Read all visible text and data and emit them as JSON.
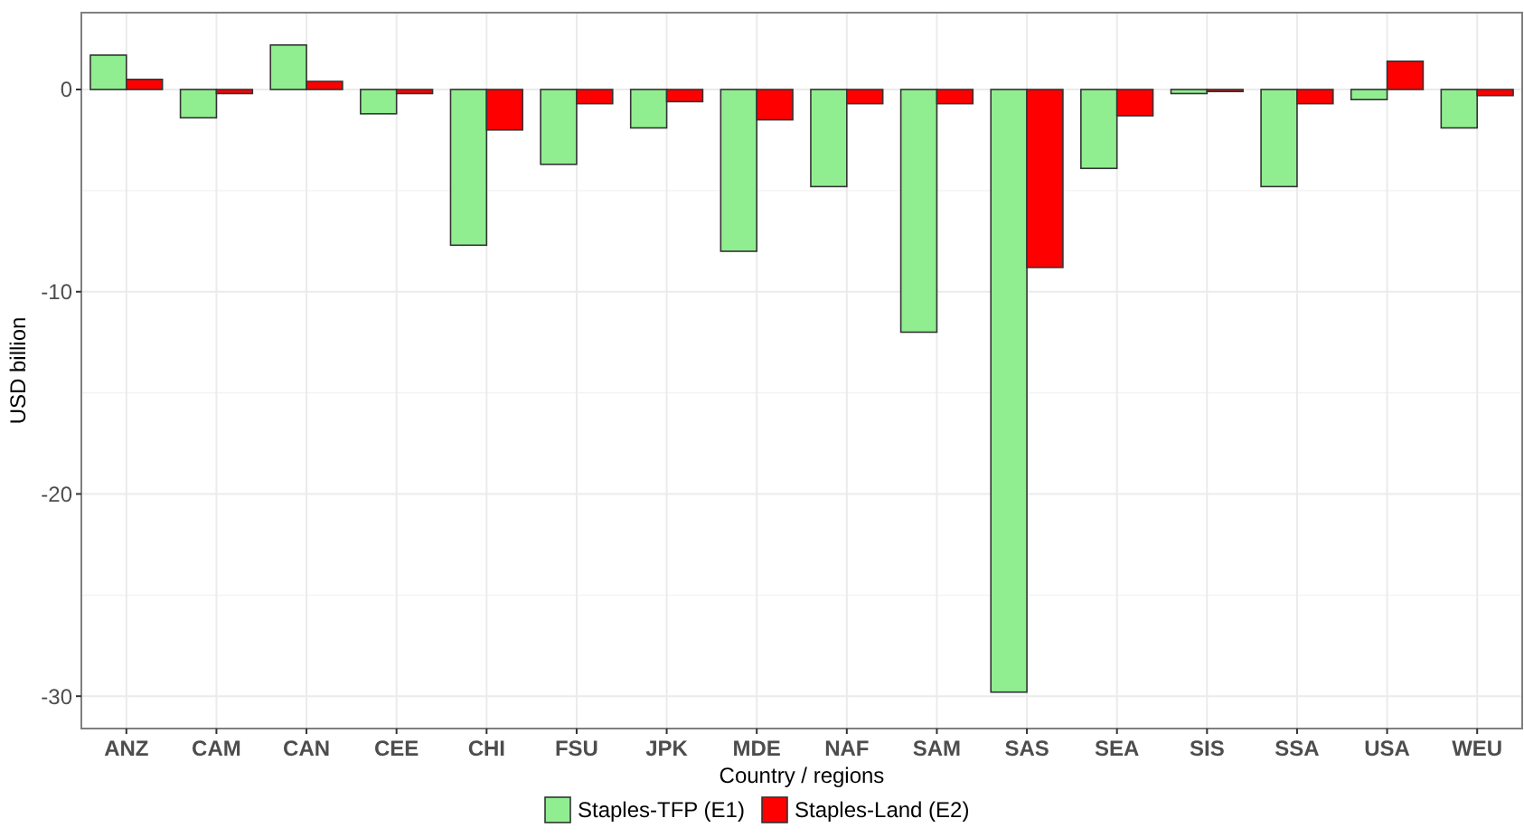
{
  "chart_data": {
    "type": "bar",
    "xlabel": "Country / regions",
    "ylabel": "USD billion",
    "categories": [
      "ANZ",
      "CAM",
      "CAN",
      "CEE",
      "CHI",
      "FSU",
      "JPK",
      "MDE",
      "NAF",
      "SAM",
      "SAS",
      "SEA",
      "SIS",
      "SSA",
      "USA",
      "WEU"
    ],
    "series": [
      {
        "name": "Staples-TFP (E1)",
        "color": "#90ee90",
        "values": [
          1.7,
          -1.4,
          2.2,
          -1.2,
          -7.7,
          -3.7,
          -1.9,
          -8.0,
          -4.8,
          -12.0,
          -29.8,
          -3.9,
          -0.2,
          -4.8,
          -0.5,
          -1.9
        ]
      },
      {
        "name": "Staples-Land (E2)",
        "color": "#ff0000",
        "values": [
          0.5,
          -0.2,
          0.4,
          -0.2,
          -2.0,
          -0.7,
          -0.6,
          -1.5,
          -0.7,
          -0.7,
          -8.8,
          -1.3,
          -0.1,
          -0.7,
          1.4,
          -0.3
        ]
      }
    ],
    "ylim": [
      -31.6,
      3.8
    ],
    "yticks": [
      -30,
      -20,
      -10,
      0
    ],
    "grid": true,
    "legend": "bottom"
  }
}
